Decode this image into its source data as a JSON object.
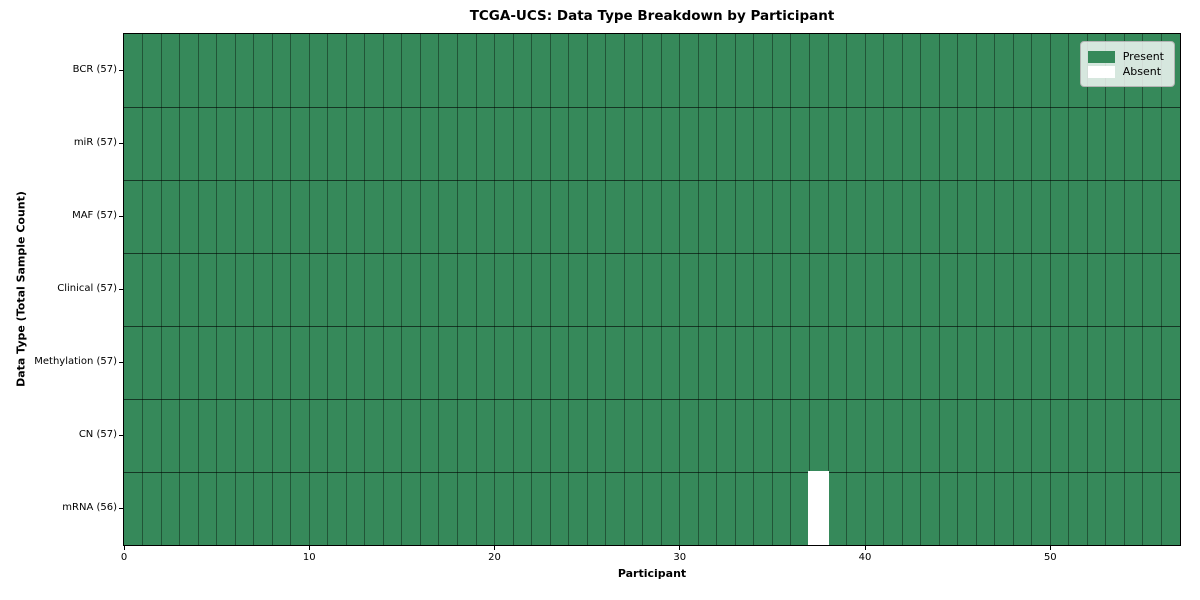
{
  "chart_data": {
    "type": "heatmap",
    "title": "TCGA-UCS: Data Type Breakdown by Participant",
    "xlabel": "Participant",
    "ylabel": "Data Type (Total Sample Count)",
    "n_participants": 57,
    "x_ticks": [
      0,
      10,
      20,
      30,
      40,
      50
    ],
    "x_range": [
      0,
      57
    ],
    "grid": "cell-borders",
    "rows": [
      {
        "label": "BCR (57)",
        "present_count": 57,
        "absent_participants": []
      },
      {
        "label": "miR (57)",
        "present_count": 57,
        "absent_participants": []
      },
      {
        "label": "MAF (57)",
        "present_count": 57,
        "absent_participants": []
      },
      {
        "label": "Clinical (57)",
        "present_count": 57,
        "absent_participants": []
      },
      {
        "label": "Methylation (57)",
        "present_count": 57,
        "absent_participants": []
      },
      {
        "label": "CN (57)",
        "present_count": 57,
        "absent_participants": []
      },
      {
        "label": "mRNA (56)",
        "present_count": 56,
        "absent_participants": [
          37
        ]
      }
    ],
    "legend": {
      "position": "upper right",
      "entries": [
        {
          "label": "Present",
          "color": "#36895A"
        },
        {
          "label": "Absent",
          "color": "#FFFFFF"
        }
      ]
    },
    "colors": {
      "present": "#36895A",
      "absent": "#FFFFFF",
      "spine": "#000000",
      "background": "#FFFFFF"
    }
  }
}
